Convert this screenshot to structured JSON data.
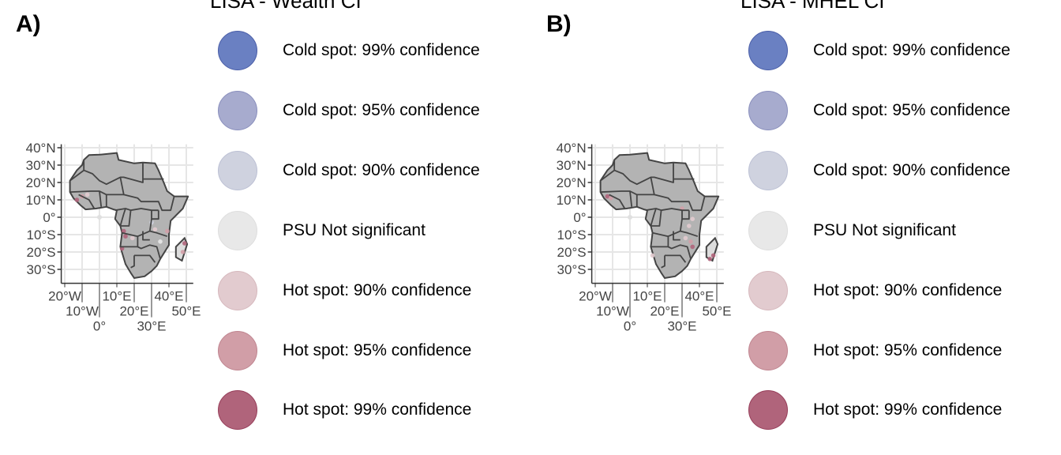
{
  "panels": [
    {
      "label": "A)",
      "legend_title": "LISA - Wealth CI"
    },
    {
      "label": "B)",
      "legend_title": "LISA - MHEL CI"
    }
  ],
  "legend": [
    {
      "label": "Cold spot: 99% confidence",
      "fill": "#6a80c2",
      "stroke": "#4a5ea8"
    },
    {
      "label": "Cold spot: 95% confidence",
      "fill": "#a7abce",
      "stroke": "#8a8fbd"
    },
    {
      "label": "Cold spot: 90% confidence",
      "fill": "#cfd2df",
      "stroke": "#bcc0d4"
    },
    {
      "label": "PSU Not significant",
      "fill": "#e8e8e8",
      "stroke": "#dedede"
    },
    {
      "label": "Hot spot: 90% confidence",
      "fill": "#e2cbcf",
      "stroke": "#d6b8bd"
    },
    {
      "label": "Hot spot: 95% confidence",
      "fill": "#d19ea7",
      "stroke": "#c08590"
    },
    {
      "label": "Hot spot: 99% confidence",
      "fill": "#b0647b",
      "stroke": "#973e5a"
    }
  ],
  "axes": {
    "lat_ticks": [
      "40°N",
      "30°N",
      "20°N",
      "10°N",
      "0°",
      "10°S",
      "20°S",
      "30°S"
    ],
    "lon_ticks": [
      "20°W",
      "10°W",
      "0°",
      "10°E",
      "20°E",
      "30°E",
      "40°E",
      "50°E"
    ]
  },
  "colors": {
    "land": "#b3b3b3",
    "border": "#444444",
    "grid": "#e6e6e6"
  }
}
